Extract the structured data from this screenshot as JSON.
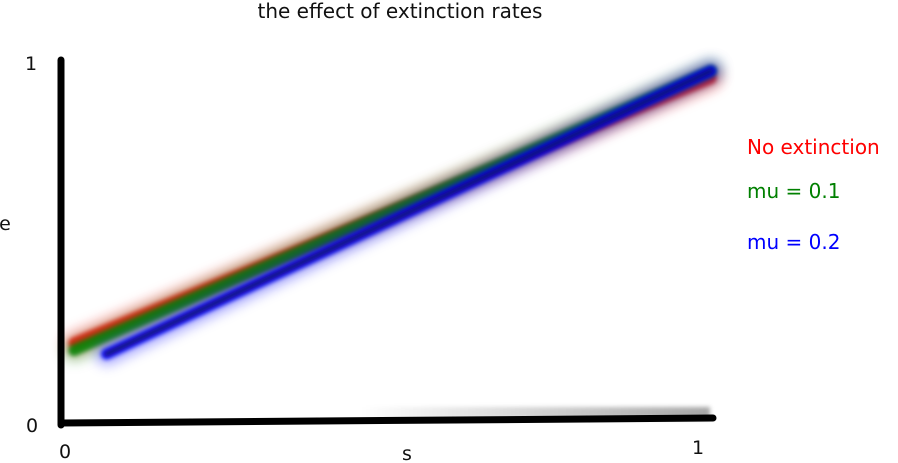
{
  "chart_data": {
    "type": "line",
    "title": "the effect of extinction rates",
    "xlabel": "s",
    "ylabel": "e",
    "xlim": [
      0,
      1
    ],
    "ylim": [
      0,
      1
    ],
    "x_ticks": [
      "0",
      "1"
    ],
    "y_ticks": [
      "0",
      "1"
    ],
    "grid": false,
    "legend_position": "right",
    "series": [
      {
        "name": "No extinction",
        "color": "#ff0000",
        "x": [
          0.02,
          1.0
        ],
        "y": [
          0.22,
          0.95
        ]
      },
      {
        "name": "mu = 0.1",
        "color": "#008000",
        "x": [
          0.02,
          1.0
        ],
        "y": [
          0.2,
          0.97
        ]
      },
      {
        "name": "mu = 0.2",
        "color": "#0000ff",
        "x": [
          0.07,
          1.0
        ],
        "y": [
          0.19,
          0.97
        ]
      }
    ]
  }
}
